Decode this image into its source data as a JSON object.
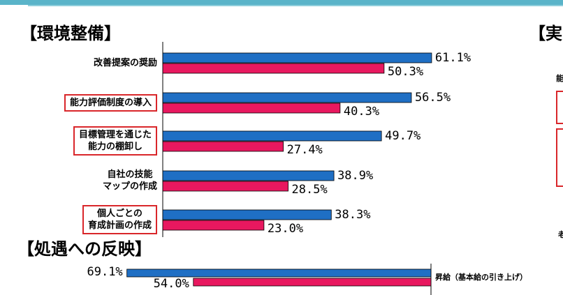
{
  "chart_data": [
    {
      "type": "bar",
      "orientation": "horizontal",
      "title": "【環境整備】",
      "categories": [
        [
          "改善提案の奨励"
        ],
        [
          "能力評価制度の導入"
        ],
        [
          "目標管理を通じた",
          "能力の棚卸し"
        ],
        [
          "自社の技能",
          "マップの作成"
        ],
        [
          "個人ごとの",
          "育成計画の作成"
        ]
      ],
      "highlighted": [
        false,
        true,
        true,
        false,
        true
      ],
      "series": [
        {
          "color": "#1f6fc4",
          "values": [
            61.1,
            56.5,
            49.7,
            38.9,
            38.3
          ]
        },
        {
          "color": "#e8185f",
          "values": [
            50.3,
            40.3,
            27.4,
            28.5,
            23.0
          ]
        }
      ],
      "value_labels": [
        [
          "61.1%",
          "56.5%",
          "49.7%",
          "38.9%",
          "38.3%"
        ],
        [
          "50.3%",
          "40.3%",
          "27.4%",
          "28.5%",
          "23.0%"
        ]
      ],
      "xlim": [
        0,
        100
      ],
      "grid": false,
      "legend": "none"
    },
    {
      "type": "bar",
      "orientation": "horizontal",
      "direction": "right-to-left",
      "title": "【処遇への反映】",
      "categories": [
        [
          "昇給（基本給の引き上げ）"
        ]
      ],
      "series": [
        {
          "color": "#1f6fc4",
          "values": [
            69.1
          ]
        },
        {
          "color": "#e8185f",
          "values": [
            54.0
          ]
        }
      ],
      "value_labels": [
        [
          "69.1%"
        ],
        [
          "54.0%"
        ]
      ],
      "xlim": [
        0,
        100
      ],
      "grid": false,
      "legend": "none"
    },
    {
      "type": "bar",
      "title": "【実",
      "categories": [
        "能"
      ],
      "footer_text": "老"
    }
  ],
  "colors": {
    "accent_bar": "#5ab4c9",
    "highlight_border": "#d9262a"
  }
}
